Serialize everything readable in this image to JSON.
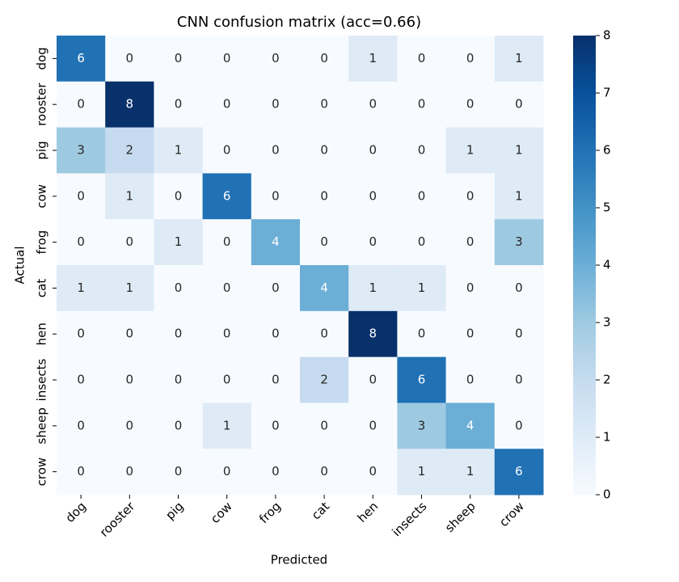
{
  "chart_data": {
    "type": "heatmap",
    "title": "CNN confusion matrix (acc=0.66)",
    "x_label": "Predicted",
    "y_label": "Actual",
    "x_categories": [
      "dog",
      "rooster",
      "pig",
      "cow",
      "frog",
      "cat",
      "hen",
      "insects",
      "sheep",
      "crow"
    ],
    "y_categories": [
      "dog",
      "rooster",
      "pig",
      "cow",
      "frog",
      "cat",
      "hen",
      "insects",
      "sheep",
      "crow"
    ],
    "values": [
      [
        6,
        0,
        0,
        0,
        0,
        0,
        1,
        0,
        0,
        1
      ],
      [
        0,
        8,
        0,
        0,
        0,
        0,
        0,
        0,
        0,
        0
      ],
      [
        3,
        2,
        1,
        0,
        0,
        0,
        0,
        0,
        1,
        1
      ],
      [
        0,
        1,
        0,
        6,
        0,
        0,
        0,
        0,
        0,
        1
      ],
      [
        0,
        0,
        1,
        0,
        4,
        0,
        0,
        0,
        0,
        3
      ],
      [
        1,
        1,
        0,
        0,
        0,
        4,
        1,
        1,
        0,
        0
      ],
      [
        0,
        0,
        0,
        0,
        0,
        0,
        8,
        0,
        0,
        0
      ],
      [
        0,
        0,
        0,
        0,
        0,
        2,
        0,
        6,
        0,
        0
      ],
      [
        0,
        0,
        0,
        1,
        0,
        0,
        0,
        3,
        4,
        0
      ],
      [
        0,
        0,
        0,
        0,
        0,
        0,
        0,
        1,
        1,
        6
      ]
    ],
    "colormap": "Blues",
    "colorbar_lim": [
      0,
      8
    ],
    "colorbar_ticks": [
      0,
      1,
      2,
      3,
      4,
      5,
      6,
      7,
      8
    ]
  }
}
